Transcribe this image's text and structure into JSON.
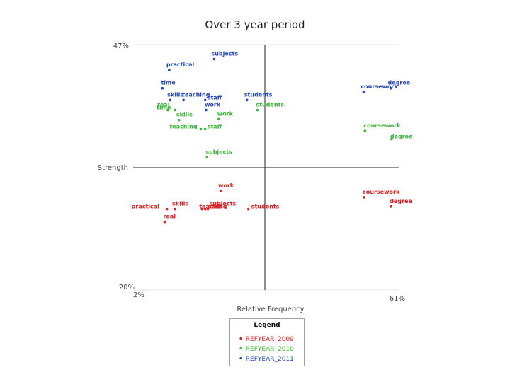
{
  "slide_title": "Over 3 year period",
  "chart_data": {
    "type": "scatter",
    "title": "Over 3 year period",
    "xlabel": "Relative Frequency",
    "ylabel": "Strength",
    "xlim": [
      2,
      61
    ],
    "ylim": [
      20,
      47
    ],
    "x_min_label": "2%",
    "x_max_label": "61%",
    "y_min_label": "20%",
    "y_max_label": "47%",
    "legend": {
      "title": "Legend",
      "placement": "bottom-center"
    },
    "series": [
      {
        "name": "REFYEAR_2009",
        "color": "#dd1f1f",
        "points": [
          {
            "label": "practical",
            "x": 9.5,
            "y": 28.9
          },
          {
            "label": "real",
            "x": 9.0,
            "y": 27.5
          },
          {
            "label": "skills",
            "x": 11.3,
            "y": 28.9
          },
          {
            "label": "teaching",
            "x": 17.3,
            "y": 28.9
          },
          {
            "label": "staff",
            "x": 18.0,
            "y": 28.9
          },
          {
            "label": "subjects",
            "x": 18.6,
            "y": 28.9
          },
          {
            "label": "students",
            "x": 27.6,
            "y": 28.9
          },
          {
            "label": "work",
            "x": 21.5,
            "y": 30.9
          },
          {
            "label": "coursework",
            "x": 53.3,
            "y": 30.2
          },
          {
            "label": "degree",
            "x": 59.3,
            "y": 29.2
          }
        ]
      },
      {
        "name": "REFYEAR_2010",
        "color": "#3ab53a",
        "points": [
          {
            "label": "time",
            "x": 11.3,
            "y": 39.8
          },
          {
            "label": "real",
            "x": 9.7,
            "y": 39.8
          },
          {
            "label": "skills",
            "x": 12.2,
            "y": 38.7
          },
          {
            "label": "teaching",
            "x": 17.0,
            "y": 37.7
          },
          {
            "label": "staff",
            "x": 18.0,
            "y": 37.7
          },
          {
            "label": "work",
            "x": 21.0,
            "y": 38.8
          },
          {
            "label": "students",
            "x": 29.6,
            "y": 39.8
          },
          {
            "label": "subjects",
            "x": 18.4,
            "y": 34.6
          },
          {
            "label": "coursework",
            "x": 53.5,
            "y": 37.5
          },
          {
            "label": "degree",
            "x": 59.4,
            "y": 36.6
          }
        ]
      },
      {
        "name": "REFYEAR_2011",
        "color": "#2244bb",
        "points": [
          {
            "label": "subjects",
            "x": 20.0,
            "y": 45.4
          },
          {
            "label": "practical",
            "x": 10.0,
            "y": 44.2
          },
          {
            "label": "time",
            "x": 8.5,
            "y": 42.2
          },
          {
            "label": "teaching",
            "x": 13.2,
            "y": 40.9
          },
          {
            "label": "staff",
            "x": 18.0,
            "y": 40.9
          },
          {
            "label": "skills",
            "x": 10.2,
            "y": 40.9
          },
          {
            "label": "work",
            "x": 18.2,
            "y": 39.8
          },
          {
            "label": "students",
            "x": 27.3,
            "y": 40.9
          },
          {
            "label": "coursework",
            "x": 53.2,
            "y": 41.8
          },
          {
            "label": "degree",
            "x": 59.2,
            "y": 42.2
          }
        ]
      }
    ]
  }
}
